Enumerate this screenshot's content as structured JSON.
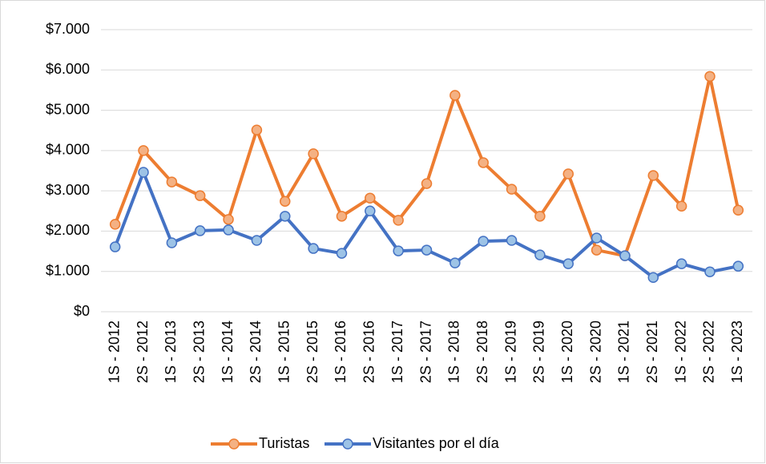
{
  "chart_data": {
    "type": "line",
    "categories": [
      "1S - 2012",
      "2S - 2012",
      "1S - 2013",
      "2S - 2013",
      "1S - 2014",
      "2S - 2014",
      "1S - 2015",
      "2S - 2015",
      "1S - 2016",
      "2S - 2016",
      "1S - 2017",
      "2S - 2017",
      "1S - 2018",
      "2S - 2018",
      "1S - 2019",
      "2S - 2019",
      "1S - 2020",
      "2S - 2020",
      "1S - 2021",
      "2S - 2021",
      "1S - 2022",
      "2S - 2022",
      "1S - 2023"
    ],
    "series": [
      {
        "name": "Turistas",
        "color": "#ed7d31",
        "marker_color": "#f4b183",
        "values": [
          2170,
          4000,
          3220,
          2880,
          2290,
          4510,
          2740,
          3920,
          2370,
          2820,
          2270,
          3180,
          5370,
          3700,
          3040,
          2370,
          3420,
          1530,
          1390,
          3380,
          2620,
          5840,
          2520
        ]
      },
      {
        "name": "Visitantes por el día",
        "color": "#4472c4",
        "marker_color": "#9dc3e6",
        "values": [
          1610,
          3460,
          1710,
          2010,
          2030,
          1770,
          2370,
          1570,
          1450,
          2500,
          1510,
          1530,
          1210,
          1750,
          1770,
          1410,
          1190,
          1830,
          1390,
          850,
          1190,
          990,
          1130
        ]
      }
    ],
    "ylim": [
      0,
      7000
    ],
    "yticks": [
      {
        "value": 0,
        "label": "$0"
      },
      {
        "value": 1000,
        "label": "$1.000"
      },
      {
        "value": 2000,
        "label": "$2.000"
      },
      {
        "value": 3000,
        "label": "$3.000"
      },
      {
        "value": 4000,
        "label": "$4.000"
      },
      {
        "value": 5000,
        "label": "$5.000"
      },
      {
        "value": 6000,
        "label": "$6.000"
      },
      {
        "value": 7000,
        "label": "$7.000"
      }
    ],
    "grid": true,
    "legend": "bottom"
  }
}
